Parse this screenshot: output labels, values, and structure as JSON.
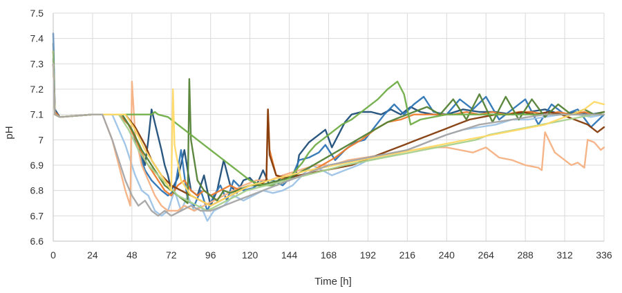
{
  "chart_data": {
    "type": "line",
    "title": "",
    "xlabel": "Time [h]",
    "ylabel": "pH",
    "xlim": [
      0,
      336
    ],
    "ylim": [
      6.6,
      7.5
    ],
    "x_ticks": [
      0,
      24,
      48,
      72,
      96,
      120,
      144,
      168,
      192,
      216,
      240,
      264,
      288,
      312,
      336
    ],
    "y_ticks": [
      6.6,
      6.7,
      6.8,
      6.9,
      7,
      7.1,
      7.2,
      7.3,
      7.4,
      7.5
    ],
    "y_tick_labels": [
      "6.6",
      "6.7",
      "6.8",
      "6.9",
      "7",
      "7.1",
      "7.2",
      "7.3",
      "7.4",
      "7.5"
    ],
    "grid": true,
    "legend": "none",
    "series": [
      {
        "color": "#1f4e79",
        "x": [
          0,
          1,
          4,
          24,
          40,
          46,
          52,
          56,
          58,
          60,
          66,
          68,
          70,
          72,
          76,
          80,
          84,
          88,
          92,
          96,
          100,
          104,
          108,
          112,
          116,
          120,
          124,
          128,
          132,
          136,
          140,
          144,
          148,
          150,
          156,
          160,
          166,
          170,
          178,
          182,
          188,
          194,
          200,
          206,
          212,
          218,
          224,
          232,
          240,
          250,
          260,
          270,
          280,
          290,
          300,
          310,
          320,
          328,
          336
        ],
        "y": [
          7.38,
          7.12,
          7.09,
          7.1,
          7.1,
          7.06,
          6.98,
          6.9,
          7.0,
          7.12,
          6.96,
          6.9,
          6.86,
          6.8,
          6.85,
          6.96,
          6.8,
          6.78,
          6.86,
          6.74,
          6.8,
          6.92,
          6.82,
          6.79,
          6.84,
          6.85,
          6.82,
          6.88,
          6.82,
          6.83,
          6.86,
          6.84,
          6.86,
          6.94,
          6.99,
          7.01,
          7.04,
          6.97,
          7.07,
          7.1,
          7.11,
          7.11,
          7.1,
          7.12,
          7.1,
          7.13,
          7.11,
          7.1,
          7.1,
          7.12,
          7.11,
          7.11,
          7.1,
          7.11,
          7.12,
          7.1,
          7.11,
          7.1,
          7.11
        ]
      },
      {
        "color": "#2e75b6",
        "x": [
          0,
          1,
          4,
          24,
          42,
          48,
          52,
          56,
          60,
          66,
          70,
          74,
          78,
          82,
          86,
          90,
          94,
          98,
          102,
          106,
          110,
          116,
          122,
          128,
          134,
          140,
          146,
          150,
          156,
          162,
          166,
          172,
          178,
          184,
          190,
          196,
          202,
          208,
          214,
          220,
          226,
          232,
          240,
          248,
          256,
          264,
          272,
          280,
          288,
          296,
          304,
          312,
          320,
          328,
          336
        ],
        "y": [
          7.42,
          7.11,
          7.09,
          7.1,
          7.1,
          7.04,
          6.96,
          6.88,
          6.84,
          6.8,
          6.78,
          6.8,
          6.96,
          6.76,
          6.74,
          6.8,
          6.72,
          6.78,
          6.82,
          6.76,
          6.84,
          6.8,
          6.81,
          6.84,
          6.84,
          6.82,
          6.86,
          6.92,
          6.93,
          6.95,
          6.98,
          6.92,
          6.96,
          6.99,
          7.0,
          7.05,
          7.1,
          7.14,
          7.1,
          7.14,
          7.17,
          7.11,
          7.1,
          7.16,
          7.12,
          7.17,
          7.08,
          7.12,
          7.16,
          7.06,
          7.14,
          7.1,
          7.12,
          7.05,
          7.1
        ]
      },
      {
        "color": "#9dc3e6",
        "x": [
          0,
          1,
          4,
          24,
          36,
          44,
          50,
          54,
          58,
          62,
          66,
          70,
          74,
          78,
          82,
          86,
          90,
          94,
          98,
          104,
          110,
          116,
          122,
          128,
          134,
          140,
          146,
          152,
          158,
          164,
          170,
          178,
          186,
          192,
          200,
          208,
          216,
          224,
          232,
          240,
          250,
          260,
          270,
          280,
          290,
          300,
          310,
          320,
          328,
          336
        ],
        "y": [
          7.3,
          7.1,
          7.09,
          7.1,
          7.1,
          6.98,
          6.86,
          6.8,
          6.78,
          6.72,
          6.7,
          6.72,
          6.8,
          6.72,
          6.78,
          6.72,
          6.74,
          6.68,
          6.72,
          6.74,
          6.78,
          6.76,
          6.78,
          6.8,
          6.79,
          6.8,
          6.82,
          6.86,
          6.9,
          6.88,
          6.86,
          6.88,
          6.9,
          6.92,
          6.93,
          6.94,
          6.96,
          6.98,
          7.0,
          7.02,
          7.04,
          7.05,
          7.06,
          7.08,
          7.08,
          7.09,
          7.1,
          7.1,
          7.09,
          7.1
        ]
      },
      {
        "color": "#f4b183",
        "x": [
          0,
          1,
          4,
          24,
          30,
          36,
          40,
          44,
          46,
          47,
          48,
          50,
          54,
          58,
          62,
          66,
          70,
          76,
          80,
          86,
          92,
          98,
          104,
          110,
          116,
          124,
          132,
          140,
          150,
          160,
          170,
          180,
          190,
          200,
          210,
          220,
          230,
          240,
          248,
          256,
          264,
          272,
          280,
          288,
          296,
          298,
          300,
          306,
          312,
          316,
          320,
          324,
          326,
          330,
          334,
          336
        ],
        "y": [
          7.3,
          7.1,
          7.09,
          7.1,
          7.1,
          7.0,
          6.9,
          6.8,
          6.76,
          6.74,
          7.23,
          7.02,
          6.9,
          6.84,
          6.78,
          6.74,
          6.72,
          6.72,
          6.74,
          6.72,
          6.74,
          6.76,
          6.78,
          6.8,
          6.82,
          6.84,
          6.84,
          6.86,
          6.88,
          6.9,
          6.9,
          6.92,
          6.93,
          6.94,
          6.95,
          6.96,
          6.97,
          6.97,
          6.96,
          6.95,
          6.97,
          6.93,
          6.92,
          6.9,
          6.89,
          6.88,
          7.03,
          6.95,
          6.92,
          6.9,
          6.91,
          6.89,
          7.0,
          6.99,
          6.96,
          6.97
        ]
      },
      {
        "color": "#ed7d31",
        "x": [
          0,
          1,
          4,
          24,
          40,
          46,
          52,
          56,
          60,
          64,
          68,
          72,
          76,
          80,
          84,
          88,
          92,
          96,
          102,
          108,
          114,
          120,
          126,
          130,
          131,
          132,
          136,
          142,
          148,
          156,
          164,
          172,
          180,
          188,
          196,
          204,
          212,
          220,
          228,
          236,
          244,
          252,
          260,
          268,
          276,
          284,
          292,
          300,
          308,
          316,
          324,
          330,
          336
        ],
        "y": [
          7.35,
          7.11,
          7.09,
          7.1,
          7.1,
          7.06,
          6.98,
          6.92,
          6.88,
          6.84,
          6.8,
          6.78,
          6.82,
          6.84,
          6.8,
          6.78,
          6.8,
          6.78,
          6.8,
          6.82,
          6.8,
          6.82,
          6.82,
          6.84,
          7.12,
          6.96,
          6.86,
          6.84,
          6.85,
          6.87,
          6.9,
          6.93,
          6.97,
          7.0,
          7.04,
          7.07,
          7.08,
          7.1,
          7.1,
          7.1,
          7.1,
          7.11,
          7.1,
          7.11,
          7.1,
          7.11,
          7.11,
          7.1,
          7.11,
          7.1,
          7.11,
          7.1,
          7.11
        ]
      },
      {
        "color": "#843c0c",
        "x": [
          0,
          1,
          4,
          24,
          44,
          50,
          56,
          60,
          66,
          72,
          78,
          84,
          90,
          96,
          102,
          108,
          114,
          120,
          126,
          130,
          131,
          132,
          136,
          142,
          150,
          158,
          166,
          174,
          182,
          190,
          198,
          206,
          214,
          222,
          230,
          238,
          246,
          254,
          262,
          270,
          278,
          286,
          294,
          302,
          310,
          318,
          326,
          332,
          336
        ],
        "y": [
          7.3,
          7.1,
          7.09,
          7.1,
          7.1,
          7.05,
          6.98,
          6.92,
          6.86,
          6.82,
          6.8,
          6.78,
          6.76,
          6.74,
          6.76,
          6.78,
          6.8,
          6.82,
          6.82,
          6.84,
          7.12,
          6.94,
          6.86,
          6.85,
          6.86,
          6.87,
          6.88,
          6.89,
          6.9,
          6.92,
          6.94,
          6.96,
          6.98,
          7.0,
          7.02,
          7.04,
          7.06,
          7.08,
          7.09,
          7.1,
          7.1,
          7.11,
          7.1,
          7.11,
          7.1,
          7.08,
          7.06,
          7.03,
          7.05
        ]
      },
      {
        "color": "#548235",
        "x": [
          0,
          1,
          4,
          24,
          42,
          48,
          54,
          60,
          64,
          68,
          72,
          76,
          80,
          82,
          83,
          84,
          88,
          92,
          96,
          100,
          104,
          108,
          112,
          116,
          120,
          126,
          132,
          138,
          144,
          150,
          156,
          164,
          172,
          180,
          188,
          196,
          204,
          212,
          220,
          228,
          236,
          244,
          252,
          260,
          268,
          276,
          284,
          292,
          300,
          308,
          316,
          324,
          330,
          336
        ],
        "y": [
          7.32,
          7.1,
          7.09,
          7.1,
          7.1,
          7.04,
          6.96,
          6.9,
          6.86,
          6.82,
          6.8,
          6.78,
          6.76,
          6.75,
          7.24,
          7.0,
          6.84,
          6.8,
          6.78,
          6.76,
          6.8,
          6.79,
          6.8,
          6.81,
          6.82,
          6.82,
          6.83,
          6.84,
          6.85,
          6.87,
          6.89,
          6.92,
          6.95,
          6.98,
          7.01,
          7.04,
          7.07,
          7.09,
          7.11,
          7.13,
          7.1,
          7.16,
          7.08,
          7.18,
          7.07,
          7.17,
          7.08,
          7.16,
          7.09,
          7.14,
          7.1,
          7.12,
          7.1,
          7.11
        ]
      },
      {
        "color": "#70ad47",
        "x": [
          0,
          1,
          4,
          24,
          36,
          44,
          48,
          54,
          60,
          62,
          64,
          70,
          72,
          76,
          80,
          84,
          88,
          92,
          96,
          100,
          104,
          108,
          112,
          116,
          120,
          124,
          128,
          132,
          136,
          140,
          144,
          148,
          152,
          156,
          160,
          164,
          168,
          172,
          176,
          182,
          190,
          198,
          204,
          210,
          214,
          218,
          224,
          232,
          240,
          250,
          260,
          270,
          280,
          290,
          300,
          310,
          320,
          328,
          336
        ],
        "y": [
          7.35,
          7.1,
          7.09,
          7.1,
          7.1,
          7.1,
          7.1,
          7.1,
          7.1,
          7.11,
          7.1,
          7.09,
          7.08,
          7.06,
          7.04,
          7.02,
          7.0,
          6.98,
          6.96,
          6.94,
          6.92,
          6.9,
          6.88,
          6.86,
          6.84,
          6.83,
          6.82,
          6.82,
          6.82,
          6.83,
          6.85,
          6.88,
          6.91,
          6.95,
          6.98,
          7.0,
          7.02,
          7.04,
          7.06,
          7.08,
          7.12,
          7.16,
          7.2,
          7.23,
          7.18,
          7.06,
          7.08,
          7.09,
          7.1,
          7.1,
          7.1,
          7.1,
          7.1,
          7.1,
          7.1,
          7.1,
          7.1,
          7.1,
          7.1
        ]
      },
      {
        "color": "#a9d18e",
        "x": [
          0,
          1,
          4,
          24,
          40,
          46,
          52,
          58,
          64,
          70,
          76,
          82,
          88,
          94,
          100,
          106,
          112,
          118,
          124,
          130,
          136,
          142,
          148,
          154,
          160,
          166,
          172,
          178,
          186,
          194,
          202,
          210,
          218,
          226,
          234,
          242,
          250,
          258,
          266,
          274,
          282,
          290,
          298,
          306,
          314,
          322,
          330,
          336
        ],
        "y": [
          7.3,
          7.1,
          7.09,
          7.1,
          7.1,
          7.04,
          6.96,
          6.9,
          6.86,
          6.82,
          6.78,
          6.76,
          6.74,
          6.72,
          6.74,
          6.76,
          6.78,
          6.8,
          6.81,
          6.82,
          6.83,
          6.84,
          6.85,
          6.86,
          6.87,
          6.88,
          6.89,
          6.9,
          6.91,
          6.92,
          6.93,
          6.94,
          6.95,
          6.96,
          6.97,
          6.98,
          6.99,
          7.0,
          7.02,
          7.03,
          7.04,
          7.05,
          7.06,
          7.07,
          7.08,
          7.09,
          7.1,
          7.1
        ]
      },
      {
        "color": "#ffd966",
        "x": [
          0,
          1,
          4,
          24,
          44,
          50,
          56,
          62,
          68,
          72,
          73,
          74,
          78,
          84,
          90,
          96,
          102,
          108,
          114,
          120,
          126,
          132,
          138,
          144,
          150,
          156,
          164,
          172,
          180,
          188,
          196,
          204,
          212,
          220,
          228,
          236,
          244,
          252,
          260,
          268,
          276,
          284,
          292,
          300,
          308,
          316,
          324,
          330,
          336
        ],
        "y": [
          7.3,
          7.1,
          7.09,
          7.1,
          7.1,
          7.04,
          6.96,
          6.9,
          6.84,
          6.8,
          7.2,
          6.98,
          6.84,
          6.78,
          6.76,
          6.74,
          6.76,
          6.78,
          6.8,
          6.82,
          6.83,
          6.84,
          6.85,
          6.86,
          6.87,
          6.88,
          6.89,
          6.9,
          6.91,
          6.92,
          6.93,
          6.94,
          6.95,
          6.96,
          6.97,
          6.98,
          6.99,
          7.0,
          7.01,
          7.02,
          7.03,
          7.04,
          7.05,
          7.06,
          7.08,
          7.1,
          7.12,
          7.15,
          7.14
        ]
      },
      {
        "color": "#a5a5a5",
        "x": [
          0,
          1,
          4,
          24,
          30,
          36,
          40,
          44,
          48,
          52,
          56,
          60,
          64,
          68,
          72,
          78,
          84,
          90,
          96,
          104,
          112,
          120,
          128,
          136,
          144,
          152,
          160,
          168,
          176,
          184,
          192,
          200,
          208,
          216,
          224,
          232,
          240,
          250,
          260,
          270,
          280,
          290,
          300,
          310,
          320,
          330,
          336
        ],
        "y": [
          7.3,
          7.1,
          7.09,
          7.1,
          7.1,
          7.0,
          6.92,
          6.84,
          6.78,
          6.74,
          6.76,
          6.72,
          6.7,
          6.72,
          6.7,
          6.72,
          6.74,
          6.72,
          6.72,
          6.74,
          6.76,
          6.78,
          6.8,
          6.82,
          6.84,
          6.86,
          6.88,
          6.9,
          6.91,
          6.92,
          6.93,
          6.94,
          6.95,
          6.96,
          6.98,
          7.0,
          7.02,
          7.04,
          7.06,
          7.07,
          7.08,
          7.09,
          7.1,
          7.1,
          7.1,
          7.1,
          7.1
        ]
      }
    ]
  }
}
